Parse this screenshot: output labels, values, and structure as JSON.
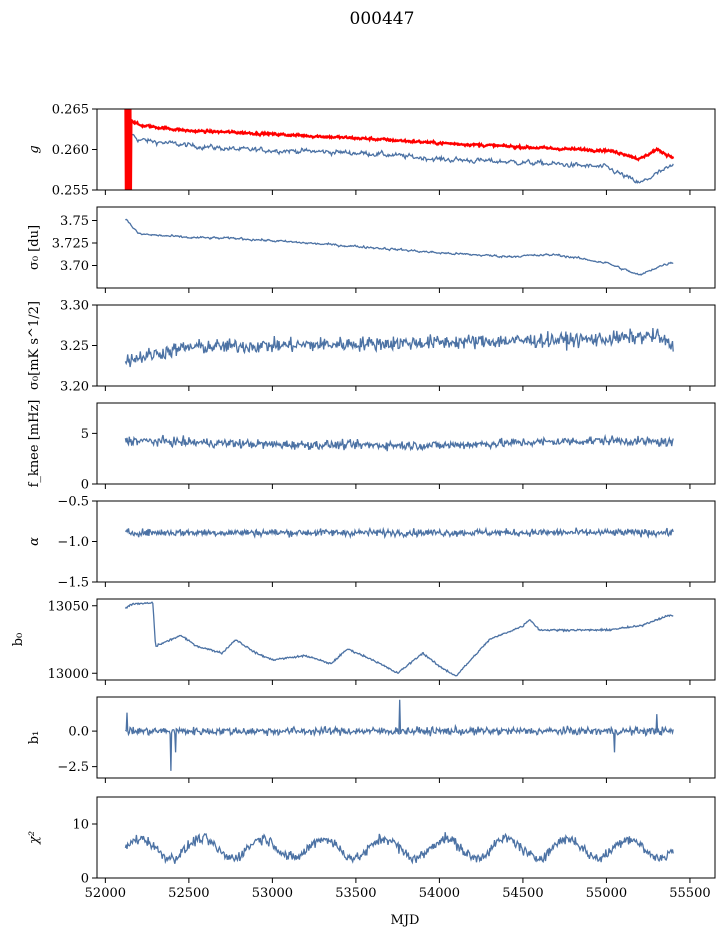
{
  "chart_data": {
    "type": "line",
    "title": "000447",
    "xlabel": "MJD",
    "xlim": [
      51950,
      55650
    ],
    "xticks": [
      52000,
      52500,
      53000,
      53500,
      54000,
      54500,
      55000,
      55500
    ],
    "xtick_labels": [
      "52000",
      "52500",
      "53000",
      "53500",
      "54000",
      "54500",
      "55000",
      "55500"
    ],
    "x_start": 52120,
    "x_end": 55400,
    "series_color": "#4c72a4",
    "highlight_color": "#ff0000",
    "panels": [
      {
        "key": "g",
        "ylabel": "g",
        "ylim": [
          0.255,
          0.265
        ],
        "yticks": [
          0.255,
          0.26,
          0.265
        ],
        "ytick_labels": [
          "0.255",
          "0.260",
          "0.265"
        ],
        "series": [
          {
            "name": "g",
            "color": "#4c72a4",
            "knots_x": [
              52120,
              52200,
              52500,
              52800,
              53200,
              53600,
              54000,
              54400,
              54700,
              55000,
              55200,
              55300,
              55400
            ],
            "knots_y": [
              0.2625,
              0.2612,
              0.2605,
              0.26,
              0.2598,
              0.2595,
              0.2588,
              0.2585,
              0.2582,
              0.2578,
              0.2558,
              0.257,
              0.258
            ],
            "noise": 0.0006
          },
          {
            "name": "g (red)",
            "color": "#ff0000",
            "knots_x": [
              52120,
              52200,
              52500,
              52800,
              53200,
              53600,
              54000,
              54400,
              54700,
              55000,
              55100,
              55200,
              55300,
              55400
            ],
            "knots_y": [
              0.2642,
              0.263,
              0.2623,
              0.2621,
              0.2617,
              0.2613,
              0.2608,
              0.2604,
              0.2601,
              0.2599,
              0.2595,
              0.2588,
              0.26,
              0.259
            ],
            "noise": 0.0003
          }
        ]
      },
      {
        "key": "sigma0_du",
        "ylabel": "σ₀ [du]",
        "ylim": [
          3.675,
          3.765
        ],
        "yticks": [
          3.7,
          3.725,
          3.75
        ],
        "ytick_labels": [
          "3.70",
          "3.725",
          "3.75"
        ],
        "series": [
          {
            "name": "sigma0",
            "color": "#4c72a4",
            "knots_x": [
              52120,
              52200,
              52500,
              52800,
              53200,
              53600,
              54000,
              54400,
              54700,
              55000,
              55200,
              55300,
              55400
            ],
            "knots_y": [
              3.752,
              3.735,
              3.731,
              3.73,
              3.725,
              3.72,
              3.714,
              3.71,
              3.712,
              3.703,
              3.689,
              3.698,
              3.704
            ],
            "noise": 0.0025
          }
        ]
      },
      {
        "key": "sigma0_mks",
        "ylabel": "σ₀[mK s^1/2]",
        "ylim": [
          3.2,
          3.3
        ],
        "yticks": [
          3.2,
          3.25,
          3.3
        ],
        "ytick_labels": [
          "3.20",
          "3.25",
          "3.30"
        ],
        "series": [
          {
            "name": "sigma0 mK",
            "color": "#4c72a4",
            "knots_x": [
              52120,
              52500,
              53000,
              53500,
              54000,
              54500,
              55000,
              55300,
              55400
            ],
            "knots_y": [
              3.232,
              3.248,
              3.25,
              3.252,
              3.254,
              3.256,
              3.258,
              3.262,
              3.248
            ],
            "noise": 0.009
          }
        ]
      },
      {
        "key": "fknee",
        "ylabel": "f_knee [mHz]",
        "ylim": [
          0,
          8
        ],
        "yticks": [
          0,
          5
        ],
        "ytick_labels": [
          "0",
          "5"
        ],
        "series": [
          {
            "name": "fknee",
            "color": "#4c72a4",
            "knots_x": [
              52120,
              53000,
              54000,
              54500,
              55000,
              55400
            ],
            "knots_y": [
              4.3,
              3.9,
              3.8,
              4.1,
              4.3,
              4.1
            ],
            "noise": 0.45
          }
        ]
      },
      {
        "key": "alpha",
        "ylabel": "α",
        "ylim": [
          -1.5,
          -0.5
        ],
        "yticks": [
          -1.5,
          -1.0,
          -0.5
        ],
        "ytick_labels": [
          "−1.5",
          "−1.0",
          "−0.5"
        ],
        "series": [
          {
            "name": "alpha",
            "color": "#4c72a4",
            "knots_x": [
              52120,
              55400
            ],
            "knots_y": [
              -0.89,
              -0.89
            ],
            "noise": 0.045
          }
        ]
      },
      {
        "key": "b0",
        "ylabel": "b₀",
        "ylim": [
          12995,
          13055
        ],
        "yticks": [
          13000,
          13050
        ],
        "ytick_labels": [
          "13000",
          "13050"
        ],
        "series": [
          {
            "name": "b0",
            "color": "#4c72a4",
            "knots_x": [
              52120,
              52150,
              52270,
              52285,
              52300,
              52450,
              52550,
              52700,
              52780,
              52900,
              53000,
              53200,
              53350,
              53450,
              53600,
              53750,
              53900,
              54000,
              54100,
              54300,
              54500,
              54540,
              54600,
              55000,
              55200,
              55350,
              55400
            ],
            "knots_y": [
              13048,
              13051,
              13052,
              13052,
              13020,
              13028,
              13020,
              13015,
              13025,
              13015,
              13010,
              13013,
              13007,
              13018,
              13010,
              13000,
              13015,
              13005,
              12998,
              13025,
              13035,
              13040,
              13032,
              13032,
              13035,
              13042,
              13043
            ],
            "noise": 0.7
          }
        ]
      },
      {
        "key": "b1",
        "ylabel": "b₁",
        "ylim": [
          -3.3,
          2.4
        ],
        "yticks": [
          -2.5,
          0.0
        ],
        "ytick_labels": [
          "−2.5",
          "0.0"
        ],
        "series": [
          {
            "name": "b1",
            "color": "#4c72a4",
            "knots_x": [
              52120,
              55400
            ],
            "knots_y": [
              0.0,
              0.0
            ],
            "noise": 0.28,
            "spikes": [
              [
                52130,
                1.3
              ],
              [
                52390,
                -2.8
              ],
              [
                52420,
                -1.5
              ],
              [
                53760,
                2.2
              ],
              [
                55050,
                -1.5
              ],
              [
                55300,
                1.2
              ]
            ]
          }
        ]
      },
      {
        "key": "chi2",
        "ylabel": "χ²",
        "ylim": [
          0,
          15
        ],
        "yticks": [
          0,
          10
        ],
        "ytick_labels": [
          "0",
          "10"
        ],
        "series": [
          {
            "name": "chi2",
            "color": "#4c72a4",
            "knots_x": [
              52120,
              55400
            ],
            "knots_y": [
              5.5,
              5.5
            ],
            "noise": 1.0,
            "wave_amp": 1.8,
            "wave_period": 365
          }
        ]
      }
    ]
  }
}
